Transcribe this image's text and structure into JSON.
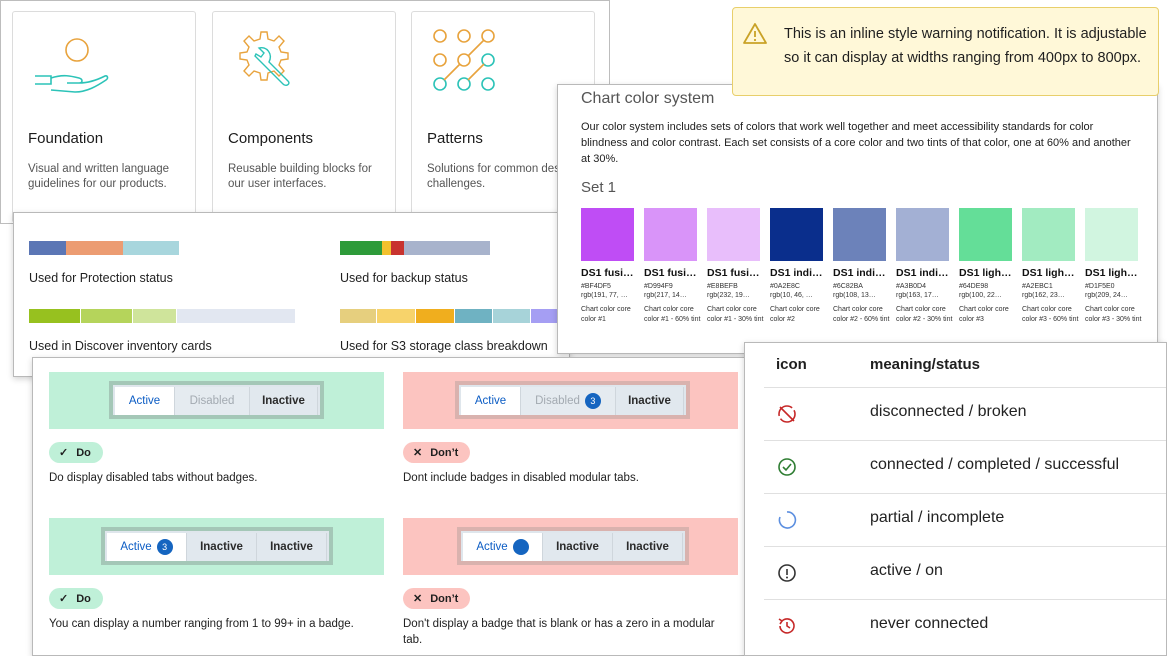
{
  "cards": [
    {
      "title": "Foundation",
      "desc": "Visual and written language guidelines for our products.",
      "icon": "hand-with-circle-icon"
    },
    {
      "title": "Components",
      "desc": "Reusable building blocks for our user interfaces.",
      "icon": "gear-with-wrench-icon"
    },
    {
      "title": "Patterns",
      "desc": "Solutions for common design challenges.",
      "icon": "node-grid-icon"
    }
  ],
  "status_bars": [
    {
      "label": "Used for Protection status",
      "colors": [
        "#5b76b5",
        "#ec9c72",
        "#a8d6dd"
      ]
    },
    {
      "label": "Used for backup status",
      "colors": [
        "#2e9b3a",
        "#f2c12e",
        "#c8332f",
        "#a8b3cc"
      ]
    },
    {
      "label": "Used in Discover inventory cards",
      "colors": [
        "#97c11f",
        "#b5d45b",
        "#cfe49b",
        "#e2e7f1"
      ]
    },
    {
      "label": "Used for S3 storage class breakdown",
      "colors": [
        "#e6cf7e",
        "#f7d36b",
        "#f0ae1e",
        "#6fb2c2",
        "#a7d3d9",
        "#a59ef3"
      ]
    }
  ],
  "chart_colors": {
    "heading": "Chart color system",
    "intro": "Our color system includes sets of colors that work well together and meet accessibility standards for color blindness and color contrast. Each set consists of a core color and two tints of that color, one at 60% and another at 30%.",
    "set_label": "Set 1",
    "swatches": [
      {
        "color": "#BF4DF5",
        "name": "DS1 fusi…",
        "hex": "#BF4DF5",
        "rgb": "rgb(191, 77, …",
        "desc": "Chart color core color #1"
      },
      {
        "color": "#D994F9",
        "name": "DS1 fusi…",
        "hex": "#D994F9",
        "rgb": "rgb(217, 14…",
        "desc": "Chart color core color #1 - 60% tint"
      },
      {
        "color": "#E8BEFB",
        "name": "DS1 fusi…",
        "hex": "#E8BEFB",
        "rgb": "rgb(232, 19…",
        "desc": "Chart color core color #1 - 30% tint"
      },
      {
        "color": "#0A2E8C",
        "name": "DS1 indi…",
        "hex": "#0A2E8C",
        "rgb": "rgb(10, 46, …",
        "desc": "Chart color core color #2"
      },
      {
        "color": "#6C82BA",
        "name": "DS1 indi…",
        "hex": "#6C82BA",
        "rgb": "rgb(108, 13…",
        "desc": "Chart color core color #2 - 60% tint"
      },
      {
        "color": "#A3B0D4",
        "name": "DS1 indi…",
        "hex": "#A3B0D4",
        "rgb": "rgb(163, 17…",
        "desc": "Chart color core color #2 - 30% tint"
      },
      {
        "color": "#64DE98",
        "name": "DS1 ligh…",
        "hex": "#64DE98",
        "rgb": "rgb(100, 22…",
        "desc": "Chart color core color #3"
      },
      {
        "color": "#A2EBC1",
        "name": "DS1 ligh…",
        "hex": "#A2EBC1",
        "rgb": "rgb(162, 23…",
        "desc": "Chart color core color #3 - 60% tint"
      },
      {
        "color": "#D1F5E0",
        "name": "DS1 ligh…",
        "hex": "#D1F5E0",
        "rgb": "rgb(209, 24…",
        "desc": "Chart color core color #3 - 30% tint"
      }
    ]
  },
  "warning": {
    "text": "This is an inline style warning notification. It is adjustable so it can display at widths ranging from 400px to 800px.",
    "icon": "warning-triangle-icon"
  },
  "guidelines": [
    {
      "kind": "do",
      "tabs": [
        {
          "label": "Active",
          "state": "active"
        },
        {
          "label": "Disabled",
          "state": "disabled"
        },
        {
          "label": "Inactive",
          "state": "inactive"
        }
      ],
      "pill": "Do",
      "caption": "Do display disabled tabs without badges."
    },
    {
      "kind": "dont",
      "tabs": [
        {
          "label": "Active",
          "state": "active"
        },
        {
          "label": "Disabled",
          "state": "disabled",
          "badge": "3"
        },
        {
          "label": "Inactive",
          "state": "inactive"
        }
      ],
      "pill": "Don’t",
      "caption": "Dont include badges in disabled modular tabs."
    },
    {
      "kind": "do",
      "tabs": [
        {
          "label": "Active",
          "state": "active",
          "badge": "3"
        },
        {
          "label": "Inactive",
          "state": "inactive"
        },
        {
          "label": "Inactive",
          "state": "inactive"
        }
      ],
      "pill": "Do",
      "caption": "You can display a number ranging from 1 to 99+ in a badge."
    },
    {
      "kind": "dont",
      "tabs": [
        {
          "label": "Active",
          "state": "active",
          "badge": ""
        },
        {
          "label": "Inactive",
          "state": "inactive"
        },
        {
          "label": "Inactive",
          "state": "inactive"
        }
      ],
      "pill": "Don’t",
      "caption": "Don't display a badge that is blank or has a zero in a modular tab."
    }
  ],
  "status_table": {
    "headers": [
      "icon",
      "meaning/status"
    ],
    "rows": [
      {
        "icon": "disconnected-icon",
        "color": "#c62828",
        "meaning": "disconnected / broken"
      },
      {
        "icon": "check-circle-icon",
        "color": "#2e7d32",
        "meaning": "connected / completed / successful"
      },
      {
        "icon": "partial-circle-icon",
        "color": "#5c8fe0",
        "meaning": "partial / incomplete"
      },
      {
        "icon": "info-circle-icon",
        "color": "#333333",
        "meaning": "active / on"
      },
      {
        "icon": "history-icon",
        "color": "#c62828",
        "meaning": "never connected"
      }
    ]
  }
}
